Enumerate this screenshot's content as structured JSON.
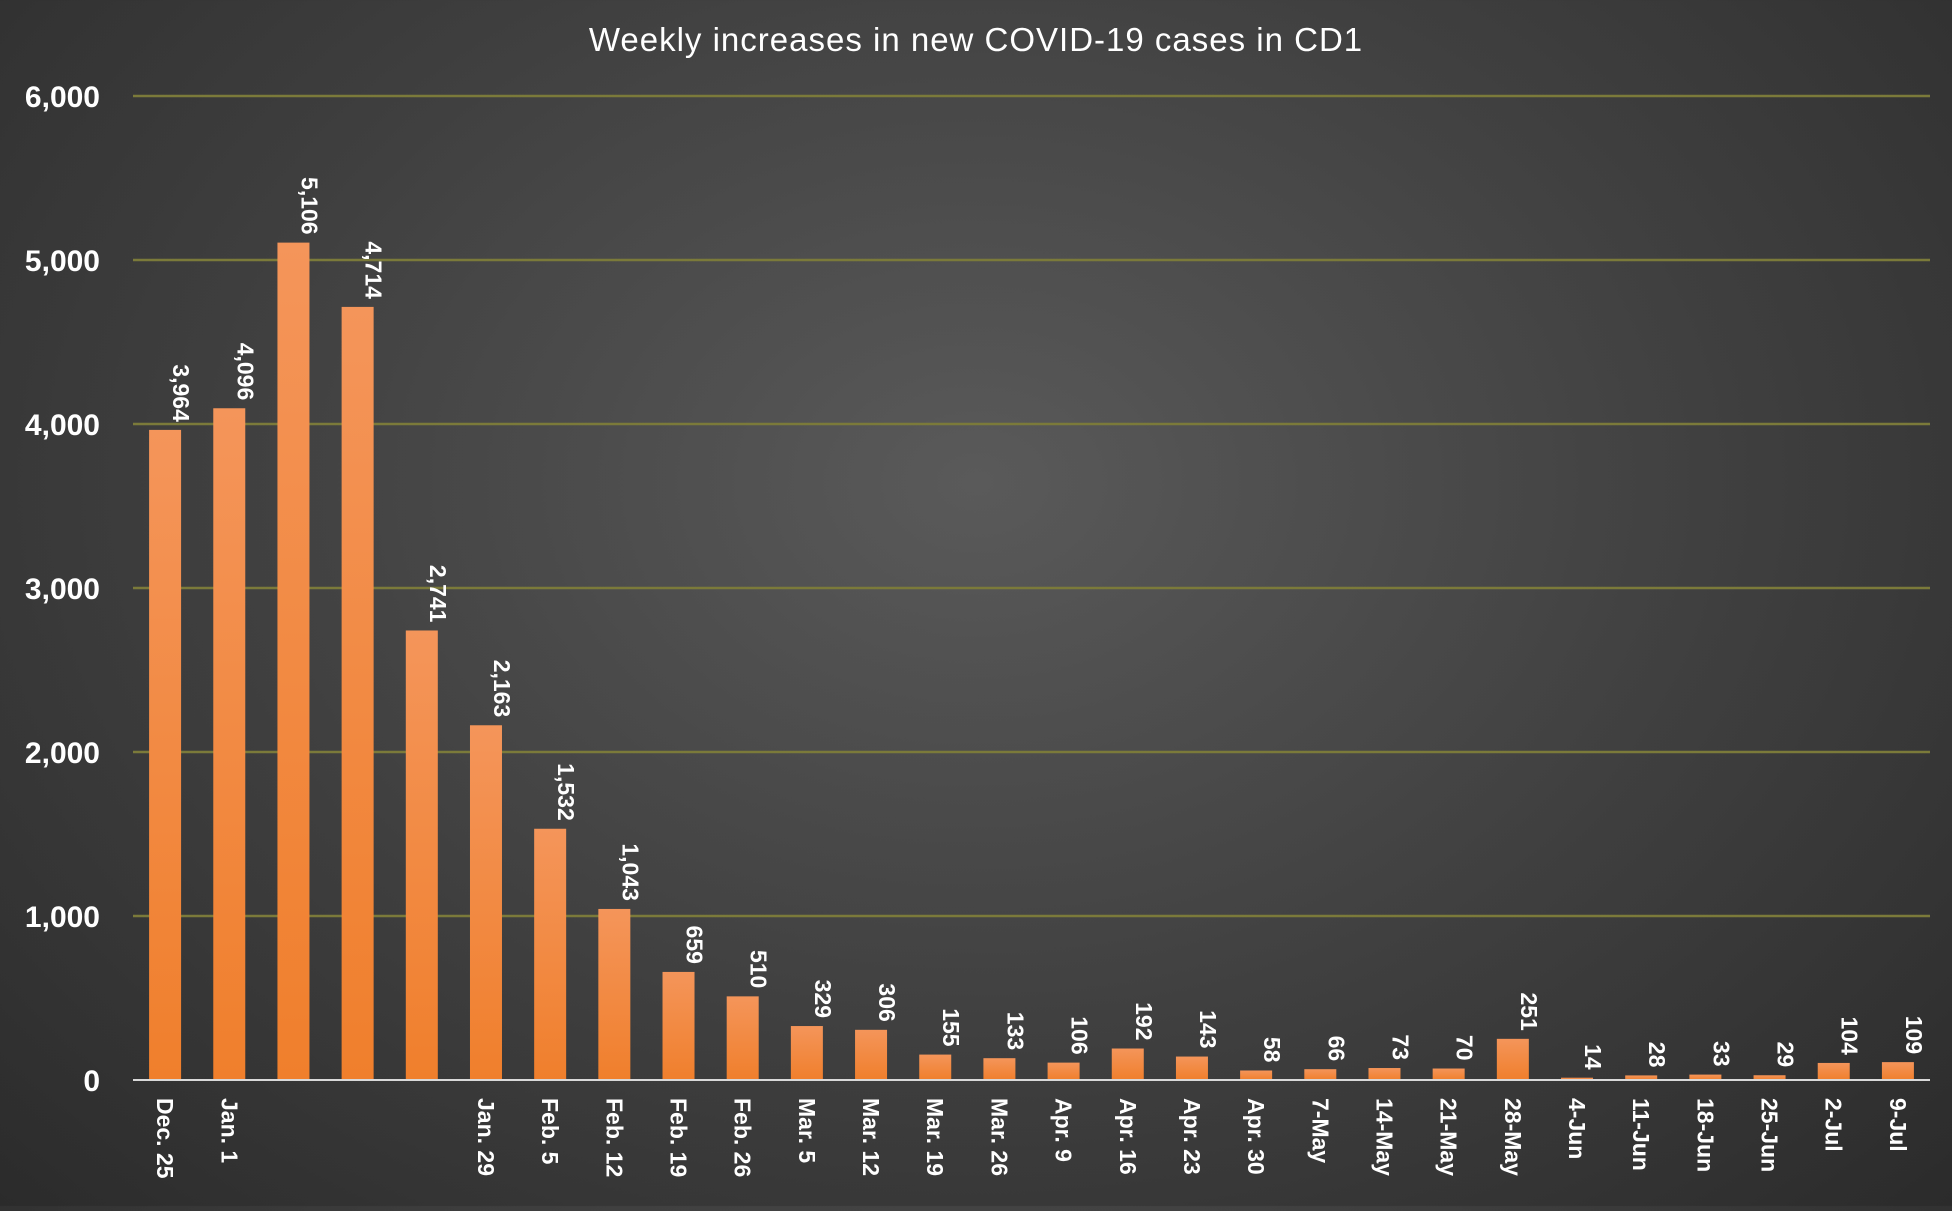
{
  "chart_data": {
    "type": "bar",
    "title": "Weekly increases in new COVID-19 cases in CD1",
    "xlabel": "",
    "ylabel": "",
    "ylim": [
      0,
      6000
    ],
    "yticks": [
      "0",
      "1,000",
      "2,000",
      "3,000",
      "4,000",
      "5,000",
      "6,000"
    ],
    "grid": true,
    "legend": "none",
    "bar_color": "#f07f2c",
    "bar_color_light": "#f4955a",
    "gridline_color": "#7b7a3a",
    "categories": [
      "Dec. 25",
      "Jan. 1",
      "",
      "",
      "",
      "Jan. 29",
      "Feb. 5",
      "Feb. 12",
      "Feb. 19",
      "Feb. 26",
      "Mar. 5",
      "Mar. 12",
      "Mar. 19",
      "Mar. 26",
      "Apr. 9",
      "Apr. 16",
      "Apr. 23",
      "Apr. 30",
      "7-May",
      "14-May",
      "21-May",
      "28-May",
      "4-Jun",
      "11-Jun",
      "18-Jun",
      "25-Jun",
      "2-Jul",
      "9-Jul"
    ],
    "values": [
      3964,
      4096,
      5106,
      4714,
      2741,
      2163,
      1532,
      1043,
      659,
      510,
      329,
      306,
      155,
      133,
      106,
      192,
      143,
      58,
      66,
      73,
      70,
      251,
      14,
      28,
      33,
      29,
      104,
      109
    ],
    "data_labels": [
      "3,964",
      "4,096",
      "5,106",
      "4,714",
      "2,741",
      "2,163",
      "1,532",
      "1,043",
      "659",
      "510",
      "329",
      "306",
      "155",
      "133",
      "106",
      "192",
      "143",
      "58",
      "66",
      "73",
      "70",
      "251",
      "14",
      "28",
      "33",
      "29",
      "104",
      "109"
    ]
  }
}
